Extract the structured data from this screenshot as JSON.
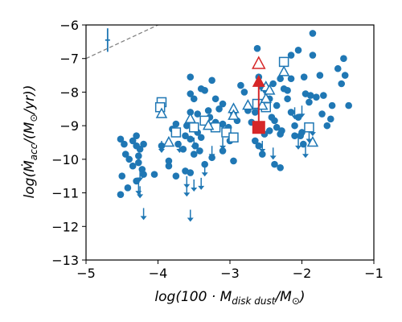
{
  "chart_data": {
    "type": "scatter",
    "title": "",
    "xlabel": "log(100 · M_disk dust / M_⊙)",
    "ylabel": "log(Ṁ_acc / (M_⊙/yr))",
    "xlim": [
      -5,
      -1
    ],
    "ylim": [
      -13,
      -6
    ],
    "xticks": [
      -5,
      -4,
      -3,
      -2,
      -1
    ],
    "yticks": [
      -13,
      -12,
      -11,
      -10,
      -9,
      -8,
      -7,
      -6
    ],
    "xtick_labels": [
      "−5",
      "−4",
      "−3",
      "−2",
      "−1"
    ],
    "ytick_labels": [
      "−13",
      "−12",
      "−11",
      "−10",
      "−9",
      "−8",
      "−7",
      "−6"
    ],
    "grid": false,
    "colors": {
      "main": "#1f77b4",
      "highlight": "#d62728",
      "guide": "#808080",
      "errorbar": "#000000"
    },
    "reference_lines": [
      {
        "name": "ratio-1",
        "intercept": -5.0,
        "slope": 1,
        "style": "dashed"
      },
      {
        "name": "ratio-2",
        "intercept": -6.0,
        "slope": 1,
        "style": "dashed"
      },
      {
        "name": "ratio-3",
        "intercept": -7.0,
        "slope": 1,
        "style": "dashed"
      }
    ],
    "typical_error": {
      "x": -4.7,
      "y": -6.45,
      "yerr": 0.35
    },
    "detections": [
      [
        -4.52,
        -9.4
      ],
      [
        -4.47,
        -9.55
      ],
      [
        -4.45,
        -9.85
      ],
      [
        -4.4,
        -10.0
      ],
      [
        -4.35,
        -9.45
      ],
      [
        -4.3,
        -9.6
      ],
      [
        -4.27,
        -9.9
      ],
      [
        -4.22,
        -10.3
      ],
      [
        -4.35,
        -10.2
      ],
      [
        -4.25,
        -9.7
      ],
      [
        -4.3,
        -9.3
      ],
      [
        -4.2,
        -9.55
      ],
      [
        -4.5,
        -10.5
      ],
      [
        -4.52,
        -11.05
      ],
      [
        -4.42,
        -10.85
      ],
      [
        -4.3,
        -10.65
      ],
      [
        -4.2,
        -10.45
      ],
      [
        -4.27,
        -10.1
      ],
      [
        -4.05,
        -10.45
      ],
      [
        -3.95,
        -9.6
      ],
      [
        -3.85,
        -10.2
      ],
      [
        -3.85,
        -10.05
      ],
      [
        -3.75,
        -10.5
      ],
      [
        -3.72,
        -9.55
      ],
      [
        -3.65,
        -9.7
      ],
      [
        -3.62,
        -9.3
      ],
      [
        -3.55,
        -9.4
      ],
      [
        -3.5,
        -9.85
      ],
      [
        -3.48,
        -9.6
      ],
      [
        -3.45,
        -9.2
      ],
      [
        -3.42,
        -9.75
      ],
      [
        -3.4,
        -9.35
      ],
      [
        -3.6,
        -9.0
      ],
      [
        -3.55,
        -8.6
      ],
      [
        -3.55,
        -8.05
      ],
      [
        -3.5,
        -8.2
      ],
      [
        -3.55,
        -7.55
      ],
      [
        -3.4,
        -7.9
      ],
      [
        -3.35,
        -7.95
      ],
      [
        -3.3,
        -8.55
      ],
      [
        -3.28,
        -8.75
      ],
      [
        -3.2,
        -8.9
      ],
      [
        -3.15,
        -8.5
      ],
      [
        -3.2,
        -8.2
      ],
      [
        -3.25,
        -7.65
      ],
      [
        -3.1,
        -8.35
      ],
      [
        -3.1,
        -8.95
      ],
      [
        -3.05,
        -9.2
      ],
      [
        -3.0,
        -9.45
      ],
      [
        -3.02,
        -9.05
      ],
      [
        -2.95,
        -8.65
      ],
      [
        -2.9,
        -8.85
      ],
      [
        -2.85,
        -7.8
      ],
      [
        -2.8,
        -8.0
      ],
      [
        -2.75,
        -8.55
      ],
      [
        -2.7,
        -8.9
      ],
      [
        -2.65,
        -8.6
      ],
      [
        -2.65,
        -9.45
      ],
      [
        -2.6,
        -9.6
      ],
      [
        -2.55,
        -9.85
      ],
      [
        -2.52,
        -9.25
      ],
      [
        -2.45,
        -9.15
      ],
      [
        -2.42,
        -8.75
      ],
      [
        -2.38,
        -8.85
      ],
      [
        -2.35,
        -9.05
      ],
      [
        -2.3,
        -9.25
      ],
      [
        -2.28,
        -9.15
      ],
      [
        -2.62,
        -6.7
      ],
      [
        -2.6,
        -7.55
      ],
      [
        -2.55,
        -7.85
      ],
      [
        -2.5,
        -7.95
      ],
      [
        -2.45,
        -8.2
      ],
      [
        -2.4,
        -7.75
      ],
      [
        -2.35,
        -8.4
      ],
      [
        -2.3,
        -7.6
      ],
      [
        -2.25,
        -7.9
      ],
      [
        -2.2,
        -8.2
      ],
      [
        -2.15,
        -8.6
      ],
      [
        -2.1,
        -9.0
      ],
      [
        -2.05,
        -8.75
      ],
      [
        -2.02,
        -9.3
      ],
      [
        -1.97,
        -7.55
      ],
      [
        -1.95,
        -8.05
      ],
      [
        -1.9,
        -8.3
      ],
      [
        -1.88,
        -8.1
      ],
      [
        -1.85,
        -6.9
      ],
      [
        -1.8,
        -8.15
      ],
      [
        -1.75,
        -7.5
      ],
      [
        -1.72,
        -8.65
      ],
      [
        -1.7,
        -8.1
      ],
      [
        -1.65,
        -9.0
      ],
      [
        -1.6,
        -8.8
      ],
      [
        -1.58,
        -8.4
      ],
      [
        -1.5,
        -7.3
      ],
      [
        -1.45,
        -7.75
      ],
      [
        -1.42,
        -7.0
      ],
      [
        -1.4,
        -7.5
      ],
      [
        -1.35,
        -8.4
      ],
      [
        -1.85,
        -6.25
      ],
      [
        -2.05,
        -6.75
      ],
      [
        -2.15,
        -6.9
      ],
      [
        -2.0,
        -9.2
      ],
      [
        -1.98,
        -9.55
      ],
      [
        -2.1,
        -9.3
      ],
      [
        -2.3,
        -10.25
      ],
      [
        -2.38,
        -10.15
      ],
      [
        -2.95,
        -10.05
      ],
      [
        -3.1,
        -9.75
      ],
      [
        -3.25,
        -9.95
      ],
      [
        -3.35,
        -10.15
      ],
      [
        -3.55,
        -10.4
      ],
      [
        -3.62,
        -10.35
      ],
      [
        -3.8,
        -9.1
      ],
      [
        -3.75,
        -8.95
      ],
      [
        -3.45,
        -8.65
      ],
      [
        -2.2,
        -7.95
      ],
      [
        -2.15,
        -7.6
      ]
    ],
    "upper_limits": [
      [
        -4.2,
        -11.5
      ],
      [
        -4.27,
        -10.75
      ],
      [
        -3.55,
        -11.55
      ],
      [
        -3.5,
        -10.65
      ],
      [
        -3.6,
        -10.55
      ],
      [
        -3.35,
        -10.2
      ],
      [
        -3.25,
        -9.65
      ],
      [
        -3.1,
        -9.4
      ],
      [
        -3.5,
        -9.4
      ],
      [
        -3.7,
        -9.5
      ],
      [
        -3.95,
        -9.5
      ],
      [
        -4.25,
        -10.85
      ],
      [
        -4.25,
        -10.35
      ],
      [
        -2.55,
        -9.5
      ],
      [
        -2.4,
        -9.7
      ],
      [
        -2.05,
        -9.4
      ],
      [
        -1.95,
        -9.65
      ],
      [
        -1.9,
        -9.2
      ],
      [
        -1.85,
        -9.0
      ],
      [
        -2.1,
        -8.5
      ],
      [
        -2.0,
        -8.45
      ],
      [
        -3.4,
        -10.6
      ],
      [
        -3.6,
        -10.8
      ]
    ],
    "triangles_open": [
      [
        -3.95,
        -8.65
      ],
      [
        -3.85,
        -9.5
      ],
      [
        -3.55,
        -8.8
      ],
      [
        -3.3,
        -9.0
      ],
      [
        -2.95,
        -8.5
      ],
      [
        -2.95,
        -8.7
      ],
      [
        -2.75,
        -8.4
      ],
      [
        -2.55,
        -8.4
      ],
      [
        -2.5,
        -8.2
      ],
      [
        -2.5,
        -7.85
      ],
      [
        -2.45,
        -7.95
      ],
      [
        -2.25,
        -7.4
      ],
      [
        -1.85,
        -9.5
      ]
    ],
    "squares_open": [
      [
        -3.95,
        -8.3
      ],
      [
        -3.97,
        -8.45
      ],
      [
        -3.75,
        -9.2
      ],
      [
        -3.5,
        -9.05
      ],
      [
        -3.35,
        -8.85
      ],
      [
        -3.2,
        -9.05
      ],
      [
        -3.05,
        -9.2
      ],
      [
        -2.95,
        -9.35
      ],
      [
        -2.62,
        -8.35
      ],
      [
        -2.5,
        -8.45
      ],
      [
        -2.25,
        -7.1
      ],
      [
        -1.9,
        -9.05
      ]
    ],
    "highlight": {
      "square": [
        -2.6,
        -9.05
      ],
      "triangle_open": [
        -2.6,
        -7.15
      ],
      "triangle_filled": [
        -2.6,
        -7.7
      ]
    }
  }
}
